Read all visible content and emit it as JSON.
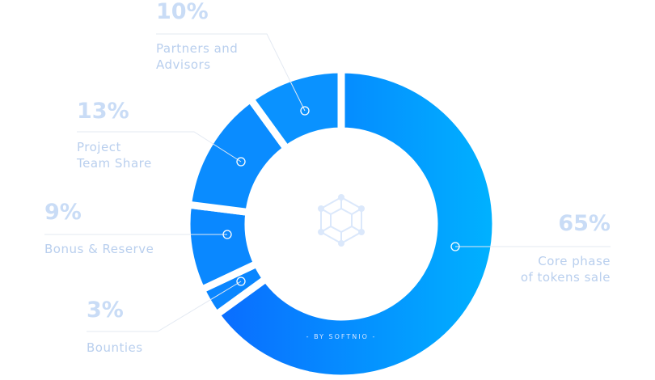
{
  "chart_data": {
    "type": "donut",
    "watermark": "- BY SOFTNIO -",
    "categories": [
      "Core phase\nof tokens sale",
      "Bounties",
      "Bonus & Reserve",
      "Project\nTeam Share",
      "Partners and\nAdvisors"
    ],
    "values": [
      65,
      3,
      9,
      13,
      10
    ],
    "value_labels": [
      "65%",
      "3%",
      "9%",
      "13%",
      "10%"
    ],
    "colors": [
      "#00b2ff",
      "#0a86ff",
      "#0a88ff",
      "#0a8cff",
      "#0a92ff"
    ]
  }
}
